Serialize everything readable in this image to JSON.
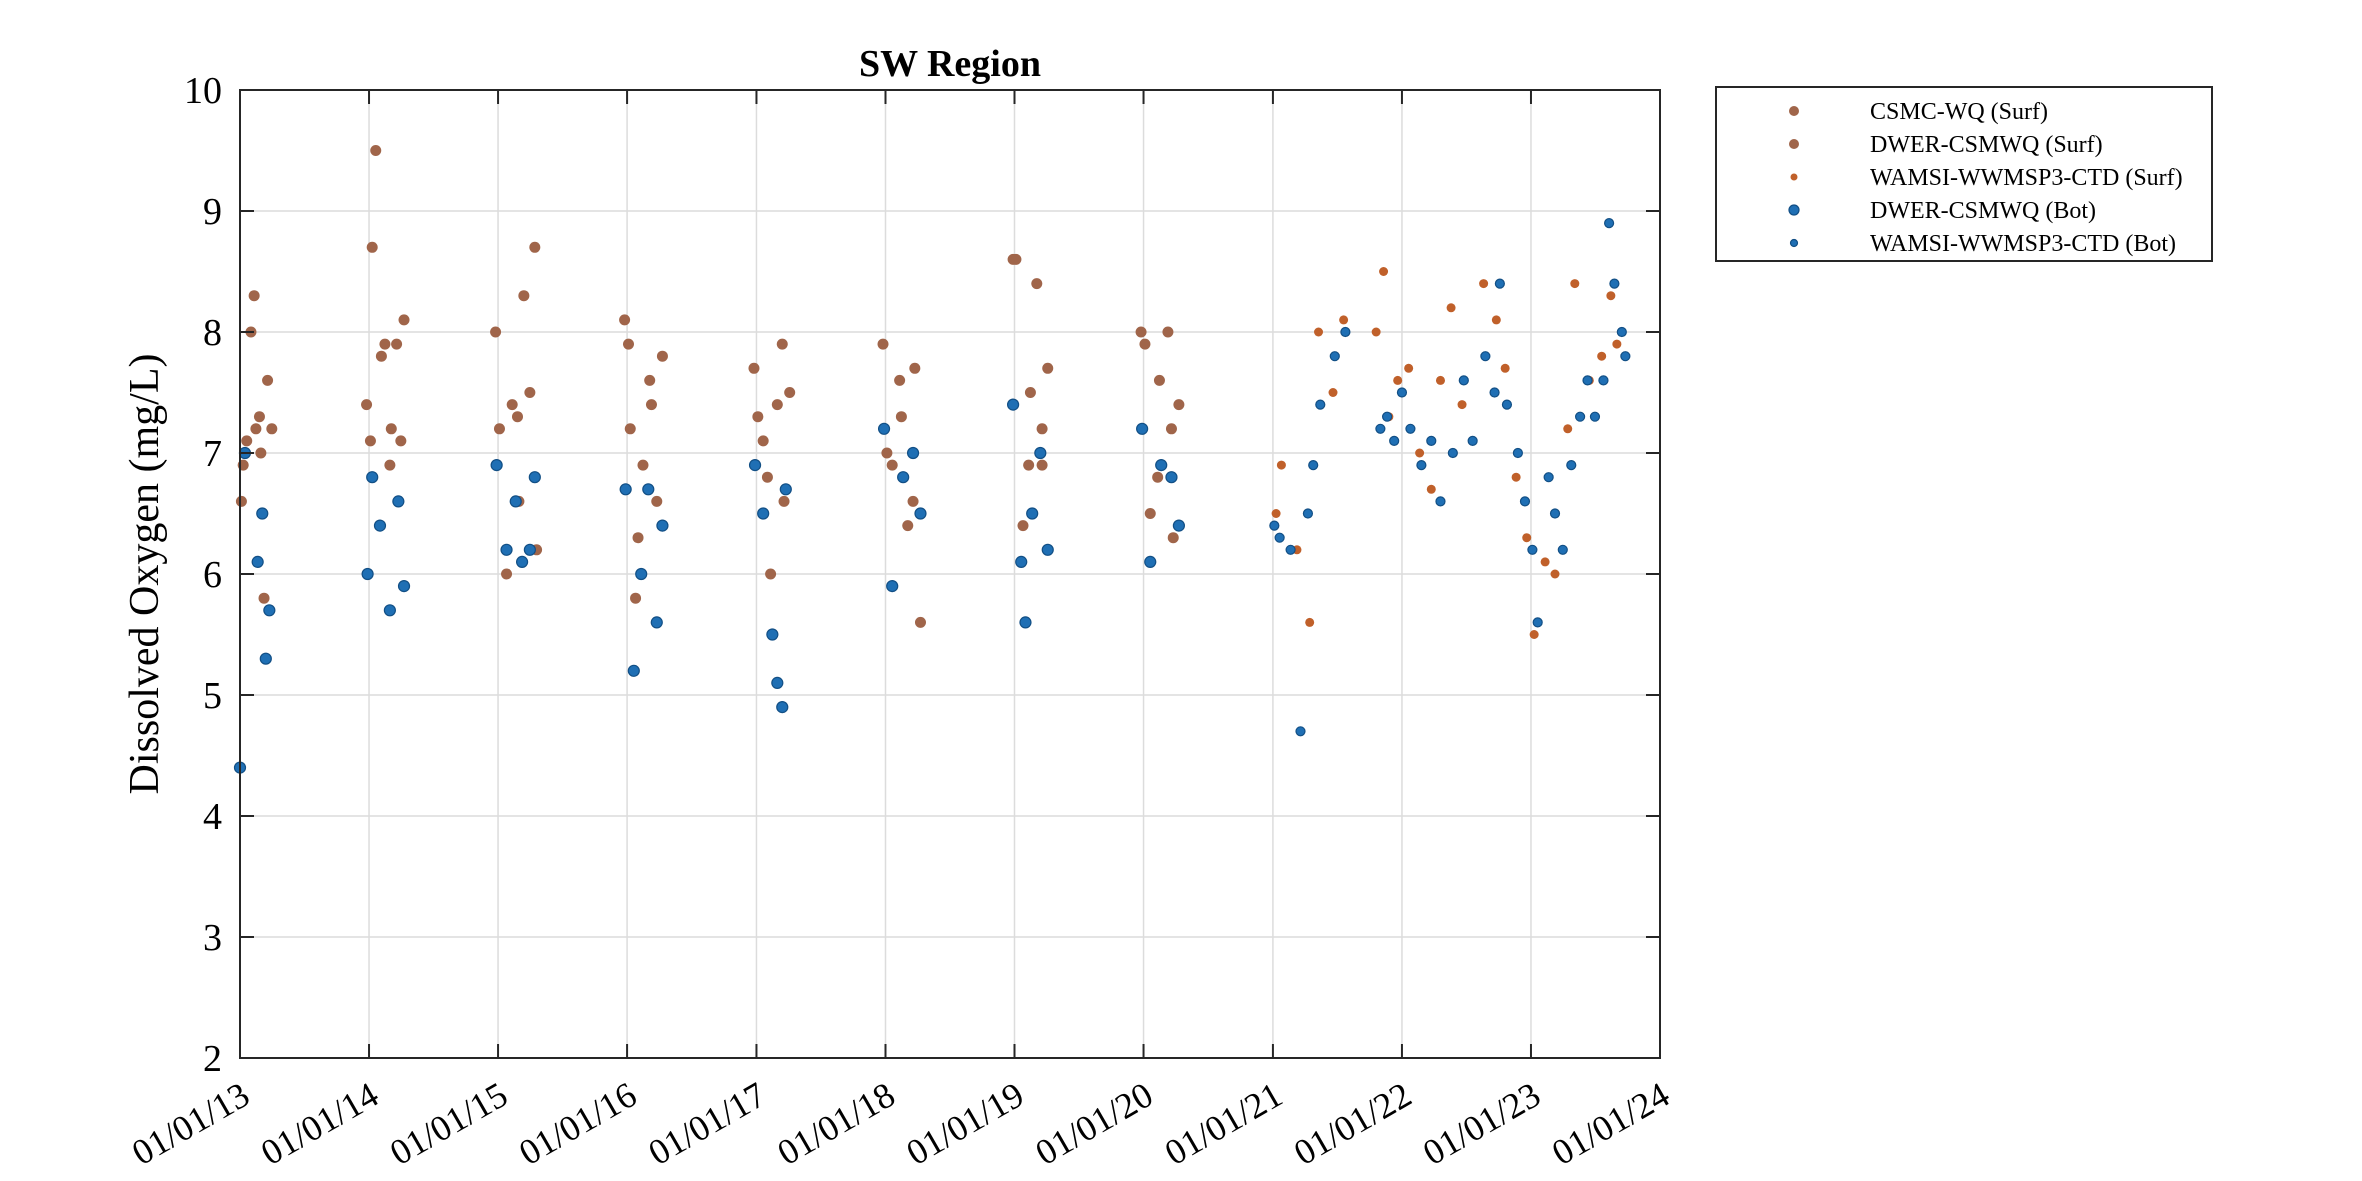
{
  "chart_data": {
    "type": "scatter",
    "title": "SW Region",
    "ylabel": "Dissolved Oxygen (mg/L)",
    "xlabel": "",
    "x_axis": {
      "kind": "date",
      "range": [
        "2013-01-01",
        "2024-01-01"
      ],
      "ticks": [
        {
          "date": "2013-01-01",
          "label": "01/01/13"
        },
        {
          "date": "2014-01-01",
          "label": "01/01/14"
        },
        {
          "date": "2015-01-01",
          "label": "01/01/15"
        },
        {
          "date": "2016-01-01",
          "label": "01/01/16"
        },
        {
          "date": "2017-01-01",
          "label": "01/01/17"
        },
        {
          "date": "2018-01-01",
          "label": "01/01/18"
        },
        {
          "date": "2019-01-01",
          "label": "01/01/19"
        },
        {
          "date": "2020-01-01",
          "label": "01/01/20"
        },
        {
          "date": "2021-01-01",
          "label": "01/01/21"
        },
        {
          "date": "2022-01-01",
          "label": "01/01/22"
        },
        {
          "date": "2023-01-01",
          "label": "01/01/23"
        },
        {
          "date": "2024-01-01",
          "label": "01/01/24"
        }
      ]
    },
    "y_axis": {
      "ylim": [
        2,
        10
      ],
      "ticks": [
        2,
        3,
        4,
        5,
        6,
        7,
        8,
        9,
        10
      ]
    },
    "grid": true,
    "legend": {
      "placement": "outside-top-right"
    },
    "series": [
      {
        "name": "CSMC-WQ (Surf)",
        "color": "#a0654a",
        "marker": "dot",
        "points": [
          [
            "2013-01-05",
            6.6
          ],
          [
            "2013-01-20",
            7.1
          ],
          [
            "2013-02-10",
            8.3
          ],
          [
            "2013-02-25",
            7.3
          ],
          [
            "2014-01-05",
            7.1
          ],
          [
            "2014-01-20",
            9.5
          ],
          [
            "2014-02-05",
            7.8
          ],
          [
            "2014-03-01",
            6.9
          ],
          [
            "2015-01-05",
            7.2
          ],
          [
            "2015-02-10",
            7.4
          ],
          [
            "2015-03-01",
            6.6
          ],
          [
            "2016-01-05",
            7.9
          ],
          [
            "2016-02-01",
            6.3
          ],
          [
            "2016-03-10",
            7.4
          ],
          [
            "2017-01-05",
            7.3
          ],
          [
            "2017-02-01",
            6.8
          ],
          [
            "2017-03-15",
            7.9
          ],
          [
            "2018-01-05",
            7.0
          ],
          [
            "2018-02-10",
            7.6
          ],
          [
            "2018-03-20",
            6.6
          ],
          [
            "2019-01-05",
            8.6
          ],
          [
            "2019-02-10",
            6.9
          ],
          [
            "2019-03-20",
            7.2
          ],
          [
            "2020-01-05",
            7.9
          ],
          [
            "2020-02-10",
            6.8
          ],
          [
            "2020-03-20",
            7.2
          ]
        ]
      },
      {
        "name": "DWER-CSMWQ (Surf)",
        "color": "#a0654a",
        "marker": "dot",
        "points": [
          [
            "2013-01-10",
            6.9
          ],
          [
            "2013-02-01",
            8.0
          ],
          [
            "2013-02-15",
            7.2
          ],
          [
            "2013-03-01",
            7.0
          ],
          [
            "2013-03-10",
            5.8
          ],
          [
            "2013-03-20",
            7.6
          ],
          [
            "2013-04-01",
            7.2
          ],
          [
            "2013-12-25",
            7.4
          ],
          [
            "2014-01-10",
            8.7
          ],
          [
            "2014-02-15",
            7.9
          ],
          [
            "2014-03-05",
            7.2
          ],
          [
            "2014-03-20",
            7.9
          ],
          [
            "2014-04-01",
            7.1
          ],
          [
            "2014-04-10",
            8.1
          ],
          [
            "2014-12-25",
            8.0
          ],
          [
            "2015-01-25",
            6.0
          ],
          [
            "2015-02-25",
            7.3
          ],
          [
            "2015-03-15",
            8.3
          ],
          [
            "2015-04-01",
            7.5
          ],
          [
            "2015-04-15",
            8.7
          ],
          [
            "2015-04-20",
            6.2
          ],
          [
            "2015-12-25",
            8.1
          ],
          [
            "2016-01-10",
            7.2
          ],
          [
            "2016-01-25",
            5.8
          ],
          [
            "2016-02-15",
            6.9
          ],
          [
            "2016-03-05",
            7.6
          ],
          [
            "2016-03-25",
            6.6
          ],
          [
            "2016-04-10",
            7.8
          ],
          [
            "2016-12-25",
            7.7
          ],
          [
            "2017-01-20",
            7.1
          ],
          [
            "2017-02-10",
            6.0
          ],
          [
            "2017-03-01",
            7.4
          ],
          [
            "2017-03-20",
            6.6
          ],
          [
            "2017-04-05",
            7.5
          ],
          [
            "2017-12-25",
            7.9
          ],
          [
            "2018-01-20",
            6.9
          ],
          [
            "2018-02-15",
            7.3
          ],
          [
            "2018-03-05",
            6.4
          ],
          [
            "2018-03-25",
            7.7
          ],
          [
            "2018-04-10",
            5.6
          ],
          [
            "2018-12-28",
            8.6
          ],
          [
            "2019-01-25",
            6.4
          ],
          [
            "2019-02-15",
            7.5
          ],
          [
            "2019-03-05",
            8.4
          ],
          [
            "2019-03-20",
            6.9
          ],
          [
            "2019-04-05",
            7.7
          ],
          [
            "2019-12-25",
            8.0
          ],
          [
            "2020-01-20",
            6.5
          ],
          [
            "2020-02-15",
            7.6
          ],
          [
            "2020-03-10",
            8.0
          ],
          [
            "2020-03-25",
            6.3
          ],
          [
            "2020-04-10",
            7.4
          ]
        ]
      },
      {
        "name": "WAMSI-WWMSP3-CTD (Surf)",
        "color": "#c0602a",
        "marker": "small-dot",
        "points": [
          [
            "2021-01-10",
            6.5
          ],
          [
            "2021-01-25",
            6.9
          ],
          [
            "2021-03-10",
            6.2
          ],
          [
            "2021-04-15",
            5.6
          ],
          [
            "2021-05-10",
            8.0
          ],
          [
            "2021-06-20",
            7.5
          ],
          [
            "2021-07-20",
            8.1
          ],
          [
            "2021-10-20",
            8.0
          ],
          [
            "2021-11-10",
            8.5
          ],
          [
            "2021-11-25",
            7.3
          ],
          [
            "2021-12-20",
            7.6
          ],
          [
            "2022-01-20",
            7.7
          ],
          [
            "2022-02-20",
            7.0
          ],
          [
            "2022-03-25",
            6.7
          ],
          [
            "2022-04-20",
            7.6
          ],
          [
            "2022-05-20",
            8.2
          ],
          [
            "2022-06-20",
            7.4
          ],
          [
            "2022-08-20",
            8.4
          ],
          [
            "2022-09-25",
            8.1
          ],
          [
            "2022-10-20",
            7.7
          ],
          [
            "2022-11-20",
            6.8
          ],
          [
            "2022-12-20",
            6.3
          ],
          [
            "2023-01-10",
            5.5
          ],
          [
            "2023-02-10",
            6.1
          ],
          [
            "2023-03-10",
            6.0
          ],
          [
            "2023-04-15",
            7.2
          ],
          [
            "2023-05-05",
            8.4
          ],
          [
            "2023-06-15",
            7.6
          ],
          [
            "2023-07-20",
            7.8
          ],
          [
            "2023-08-15",
            8.3
          ],
          [
            "2023-09-01",
            7.9
          ]
        ]
      },
      {
        "name": "DWER-CSMWQ (Bot)",
        "color": "#1f6fb4",
        "marker": "dot",
        "points": [
          [
            "2013-01-01",
            4.4
          ],
          [
            "2013-01-15",
            7.0
          ],
          [
            "2013-02-20",
            6.1
          ],
          [
            "2013-03-05",
            6.5
          ],
          [
            "2013-03-15",
            5.3
          ],
          [
            "2013-03-25",
            5.7
          ],
          [
            "2013-12-28",
            6.0
          ],
          [
            "2014-01-10",
            6.8
          ],
          [
            "2014-02-01",
            6.4
          ],
          [
            "2014-03-01",
            5.7
          ],
          [
            "2014-03-25",
            6.6
          ],
          [
            "2014-04-10",
            5.9
          ],
          [
            "2014-12-28",
            6.9
          ],
          [
            "2015-01-25",
            6.2
          ],
          [
            "2015-02-20",
            6.6
          ],
          [
            "2015-03-10",
            6.1
          ],
          [
            "2015-04-01",
            6.2
          ],
          [
            "2015-04-15",
            6.8
          ],
          [
            "2015-12-28",
            6.7
          ],
          [
            "2016-01-20",
            5.2
          ],
          [
            "2016-02-10",
            6.0
          ],
          [
            "2016-03-01",
            6.7
          ],
          [
            "2016-03-25",
            5.6
          ],
          [
            "2016-04-10",
            6.4
          ],
          [
            "2016-12-28",
            6.9
          ],
          [
            "2017-01-20",
            6.5
          ],
          [
            "2017-02-15",
            5.5
          ],
          [
            "2017-03-01",
            5.1
          ],
          [
            "2017-03-15",
            4.9
          ],
          [
            "2017-03-25",
            6.7
          ],
          [
            "2017-12-28",
            7.2
          ],
          [
            "2018-01-20",
            5.9
          ],
          [
            "2018-02-20",
            6.8
          ],
          [
            "2018-03-20",
            7.0
          ],
          [
            "2018-04-10",
            6.5
          ],
          [
            "2018-12-28",
            7.4
          ],
          [
            "2019-01-20",
            6.1
          ],
          [
            "2019-02-01",
            5.6
          ],
          [
            "2019-02-20",
            6.5
          ],
          [
            "2019-03-15",
            7.0
          ],
          [
            "2019-04-05",
            6.2
          ],
          [
            "2019-12-28",
            7.2
          ],
          [
            "2020-01-20",
            6.1
          ],
          [
            "2020-02-20",
            6.9
          ],
          [
            "2020-03-20",
            6.8
          ],
          [
            "2020-04-10",
            6.4
          ]
        ]
      },
      {
        "name": "WAMSI-WWMSP3-CTD (Bot)",
        "color": "#1f6fb4",
        "marker": "small-dot",
        "points": [
          [
            "2021-01-05",
            6.4
          ],
          [
            "2021-01-20",
            6.3
          ],
          [
            "2021-02-20",
            6.2
          ],
          [
            "2021-03-20",
            4.7
          ],
          [
            "2021-04-10",
            6.5
          ],
          [
            "2021-04-25",
            6.9
          ],
          [
            "2021-05-15",
            7.4
          ],
          [
            "2021-06-25",
            7.8
          ],
          [
            "2021-07-25",
            8.0
          ],
          [
            "2021-11-01",
            7.2
          ],
          [
            "2021-11-20",
            7.3
          ],
          [
            "2021-12-10",
            7.1
          ],
          [
            "2022-01-01",
            7.5
          ],
          [
            "2022-01-25",
            7.2
          ],
          [
            "2022-02-25",
            6.9
          ],
          [
            "2022-03-25",
            7.1
          ],
          [
            "2022-04-20",
            6.6
          ],
          [
            "2022-05-25",
            7.0
          ],
          [
            "2022-06-25",
            7.6
          ],
          [
            "2022-07-20",
            7.1
          ],
          [
            "2022-08-25",
            7.8
          ],
          [
            "2022-09-20",
            7.5
          ],
          [
            "2022-10-05",
            8.4
          ],
          [
            "2022-10-25",
            7.4
          ],
          [
            "2022-11-25",
            7.0
          ],
          [
            "2022-12-15",
            6.6
          ],
          [
            "2023-01-05",
            6.2
          ],
          [
            "2023-01-20",
            5.6
          ],
          [
            "2023-02-20",
            6.8
          ],
          [
            "2023-03-10",
            6.5
          ],
          [
            "2023-04-01",
            6.2
          ],
          [
            "2023-04-25",
            6.9
          ],
          [
            "2023-05-20",
            7.3
          ],
          [
            "2023-06-10",
            7.6
          ],
          [
            "2023-07-01",
            7.3
          ],
          [
            "2023-07-25",
            7.6
          ],
          [
            "2023-08-10",
            8.9
          ],
          [
            "2023-08-25",
            8.4
          ],
          [
            "2023-09-15",
            8.0
          ],
          [
            "2023-09-25",
            7.8
          ]
        ]
      }
    ]
  }
}
